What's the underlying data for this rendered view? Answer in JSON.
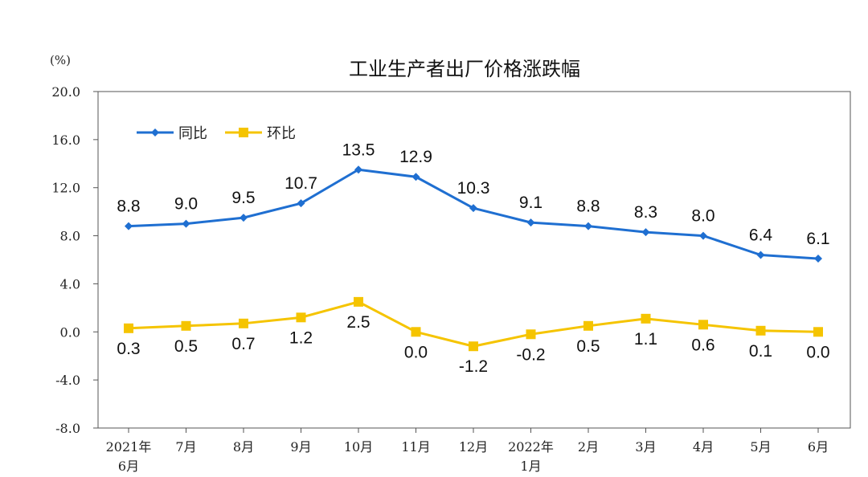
{
  "chart_data": {
    "type": "line",
    "title": "工业生产者出厂价格涨跌幅",
    "unit_label": "(%)",
    "categories": [
      [
        "2021年",
        "6月"
      ],
      [
        "7月"
      ],
      [
        "8月"
      ],
      [
        "9月"
      ],
      [
        "10月"
      ],
      [
        "11月"
      ],
      [
        "12月"
      ],
      [
        "2022年",
        "1月"
      ],
      [
        "2月"
      ],
      [
        "3月"
      ],
      [
        "4月"
      ],
      [
        "5月"
      ],
      [
        "6月"
      ]
    ],
    "series": [
      {
        "name": "同比",
        "color": "#1f6fd1",
        "marker": "diamond",
        "values": [
          8.8,
          9.0,
          9.5,
          10.7,
          13.5,
          12.9,
          10.3,
          9.1,
          8.8,
          8.3,
          8.0,
          6.4,
          6.1
        ],
        "labels": [
          "8.8",
          "9.0",
          "9.5",
          "10.7",
          "13.5",
          "12.9",
          "10.3",
          "9.1",
          "8.8",
          "8.3",
          "8.0",
          "6.4",
          "6.1"
        ],
        "label_position": "above"
      },
      {
        "name": "环比",
        "color": "#f5c400",
        "marker": "square",
        "values": [
          0.3,
          0.5,
          0.7,
          1.2,
          2.5,
          0.0,
          -1.2,
          -0.2,
          0.5,
          1.1,
          0.6,
          0.1,
          0.0
        ],
        "labels": [
          "0.3",
          "0.5",
          "0.7",
          "1.2",
          "2.5",
          "0.0",
          "-1.2",
          "-0.2",
          "0.5",
          "1.1",
          "0.6",
          "0.1",
          "0.0"
        ],
        "label_position": "below"
      }
    ],
    "ylim": [
      -8.0,
      20.0
    ],
    "yticks": [
      "-8.0",
      "-4.0",
      "0.0",
      "4.0",
      "8.0",
      "12.0",
      "16.0",
      "20.0"
    ],
    "ytick_values": [
      -8,
      -4,
      0,
      4,
      8,
      12,
      16,
      20
    ],
    "grid": false,
    "legend_position": "top-left"
  }
}
